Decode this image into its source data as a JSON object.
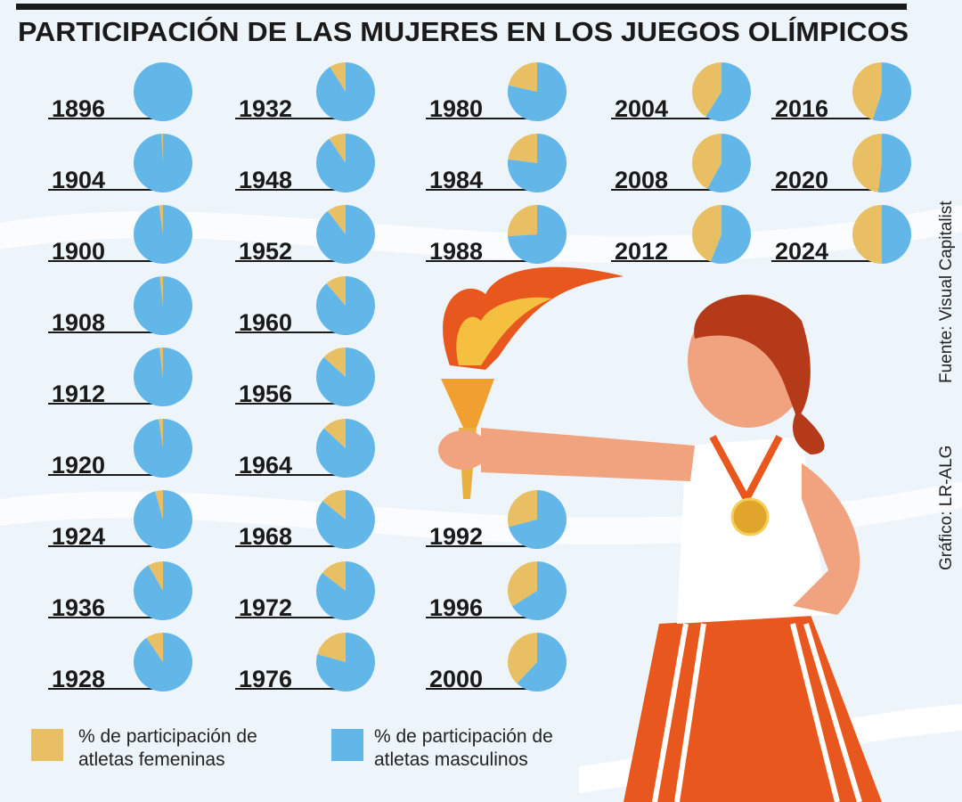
{
  "chart_data": {
    "type": "pie",
    "title": "PARTICIPACIÓN DE LAS MUJERES EN LOS JUEGOS OLÍMPICOS",
    "categories": [
      "1896",
      "1904",
      "1900",
      "1908",
      "1912",
      "1920",
      "1924",
      "1936",
      "1928",
      "1932",
      "1948",
      "1952",
      "1960",
      "1956",
      "1964",
      "1968",
      "1972",
      "1976",
      "1980",
      "1984",
      "1988",
      "1992",
      "1996",
      "2000",
      "2004",
      "2008",
      "2012",
      "2016",
      "2020",
      "2024"
    ],
    "series": [
      {
        "name": "% de participación de atletas femeninas",
        "color": "#e8c063",
        "values": [
          0,
          0.9,
          2.2,
          1.8,
          2.0,
          2.4,
          4.4,
          8.3,
          9.6,
          9.0,
          9.5,
          10.5,
          11.4,
          13.3,
          13.2,
          14.2,
          14.6,
          20.7,
          21.5,
          23,
          26,
          29,
          34,
          38,
          41,
          42,
          44,
          45,
          48,
          50
        ]
      },
      {
        "name": "% de participación de atletas masculinos",
        "color": "#63b7e8",
        "values": [
          100,
          99.1,
          97.8,
          98.2,
          98,
          97.6,
          95.6,
          91.7,
          90.4,
          91,
          90.5,
          89.5,
          88.6,
          86.7,
          86.8,
          85.8,
          85.4,
          79.3,
          78.5,
          77,
          74,
          71,
          66,
          62,
          59,
          58,
          56,
          55,
          52,
          50
        ]
      }
    ],
    "source": "Fuente: Visual Capitalist",
    "credit": "Gráfico: LR-ALG"
  }
}
